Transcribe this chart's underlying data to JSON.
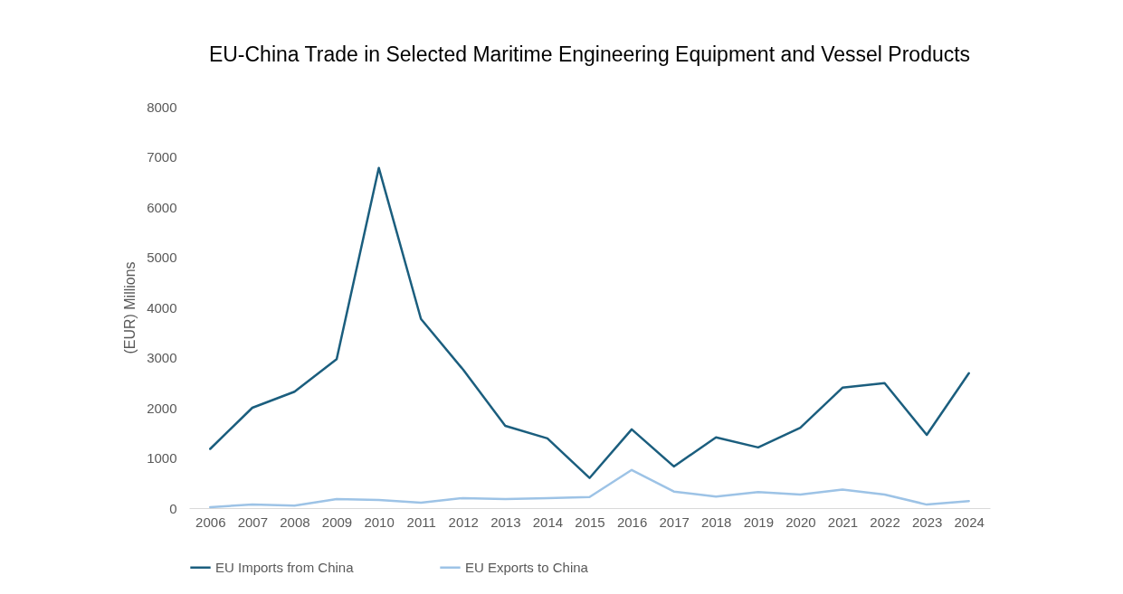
{
  "chart_data": {
    "type": "line",
    "title": "EU-China Trade in Selected Maritime Engineering Equipment and Vessel Products",
    "ylabel": "(EUR) Millions",
    "categories": [
      "2006",
      "2007",
      "2008",
      "2009",
      "2010",
      "2011",
      "2012",
      "2013",
      "2014",
      "2015",
      "2016",
      "2017",
      "2018",
      "2019",
      "2020",
      "2021",
      "2022",
      "2023",
      "2024"
    ],
    "series": [
      {
        "name": "EU Imports from China",
        "color": "#1b5e7e",
        "values": [
          1180,
          2000,
          2320,
          2970,
          6780,
          3770,
          2760,
          1640,
          1390,
          600,
          1570,
          830,
          1410,
          1210,
          1600,
          2400,
          2490,
          1460,
          2690
        ]
      },
      {
        "name": "EU Exports to China",
        "color": "#9dc3e6",
        "values": [
          20,
          70,
          50,
          180,
          160,
          110,
          200,
          180,
          200,
          220,
          760,
          330,
          230,
          320,
          270,
          370,
          270,
          70,
          140
        ]
      }
    ],
    "ylim": [
      0,
      8000
    ],
    "yticks": [
      0,
      1000,
      2000,
      3000,
      4000,
      5000,
      6000,
      7000,
      8000
    ],
    "grid": false,
    "legend": "bottom",
    "marker": "none",
    "line_style": "solid"
  }
}
